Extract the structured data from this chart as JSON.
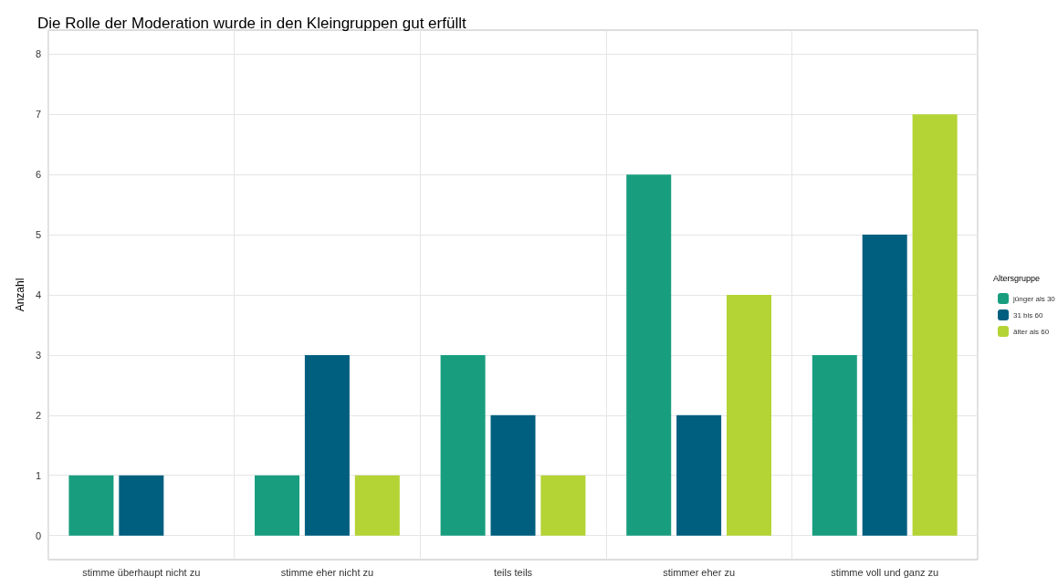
{
  "chart_data": {
    "type": "bar",
    "title": "Die Rolle der Moderation wurde in den Kleingruppen gut erfüllt",
    "ylabel": "Anzahl",
    "legend_title": "Altersgruppe",
    "categories": [
      "stimme überhaupt nicht zu",
      "stimme eher nicht zu",
      "teils teils",
      "stimmer eher zu",
      "stimme voll und ganz zu"
    ],
    "series": [
      {
        "name": "jünger als 30",
        "color": "#189e7f",
        "values": [
          1,
          1,
          3,
          6,
          3
        ]
      },
      {
        "name": "31 bis 60",
        "color": "#005f7f",
        "values": [
          1,
          3,
          2,
          2,
          5
        ]
      },
      {
        "name": "älter als 60",
        "color": "#b4d334",
        "values": [
          null,
          1,
          1,
          4,
          7
        ]
      }
    ],
    "ylim": [
      -0.4,
      8.4
    ],
    "yticks": [
      0,
      1,
      2,
      3,
      4,
      5,
      6,
      7,
      8
    ],
    "grid": true,
    "legend": "right"
  }
}
